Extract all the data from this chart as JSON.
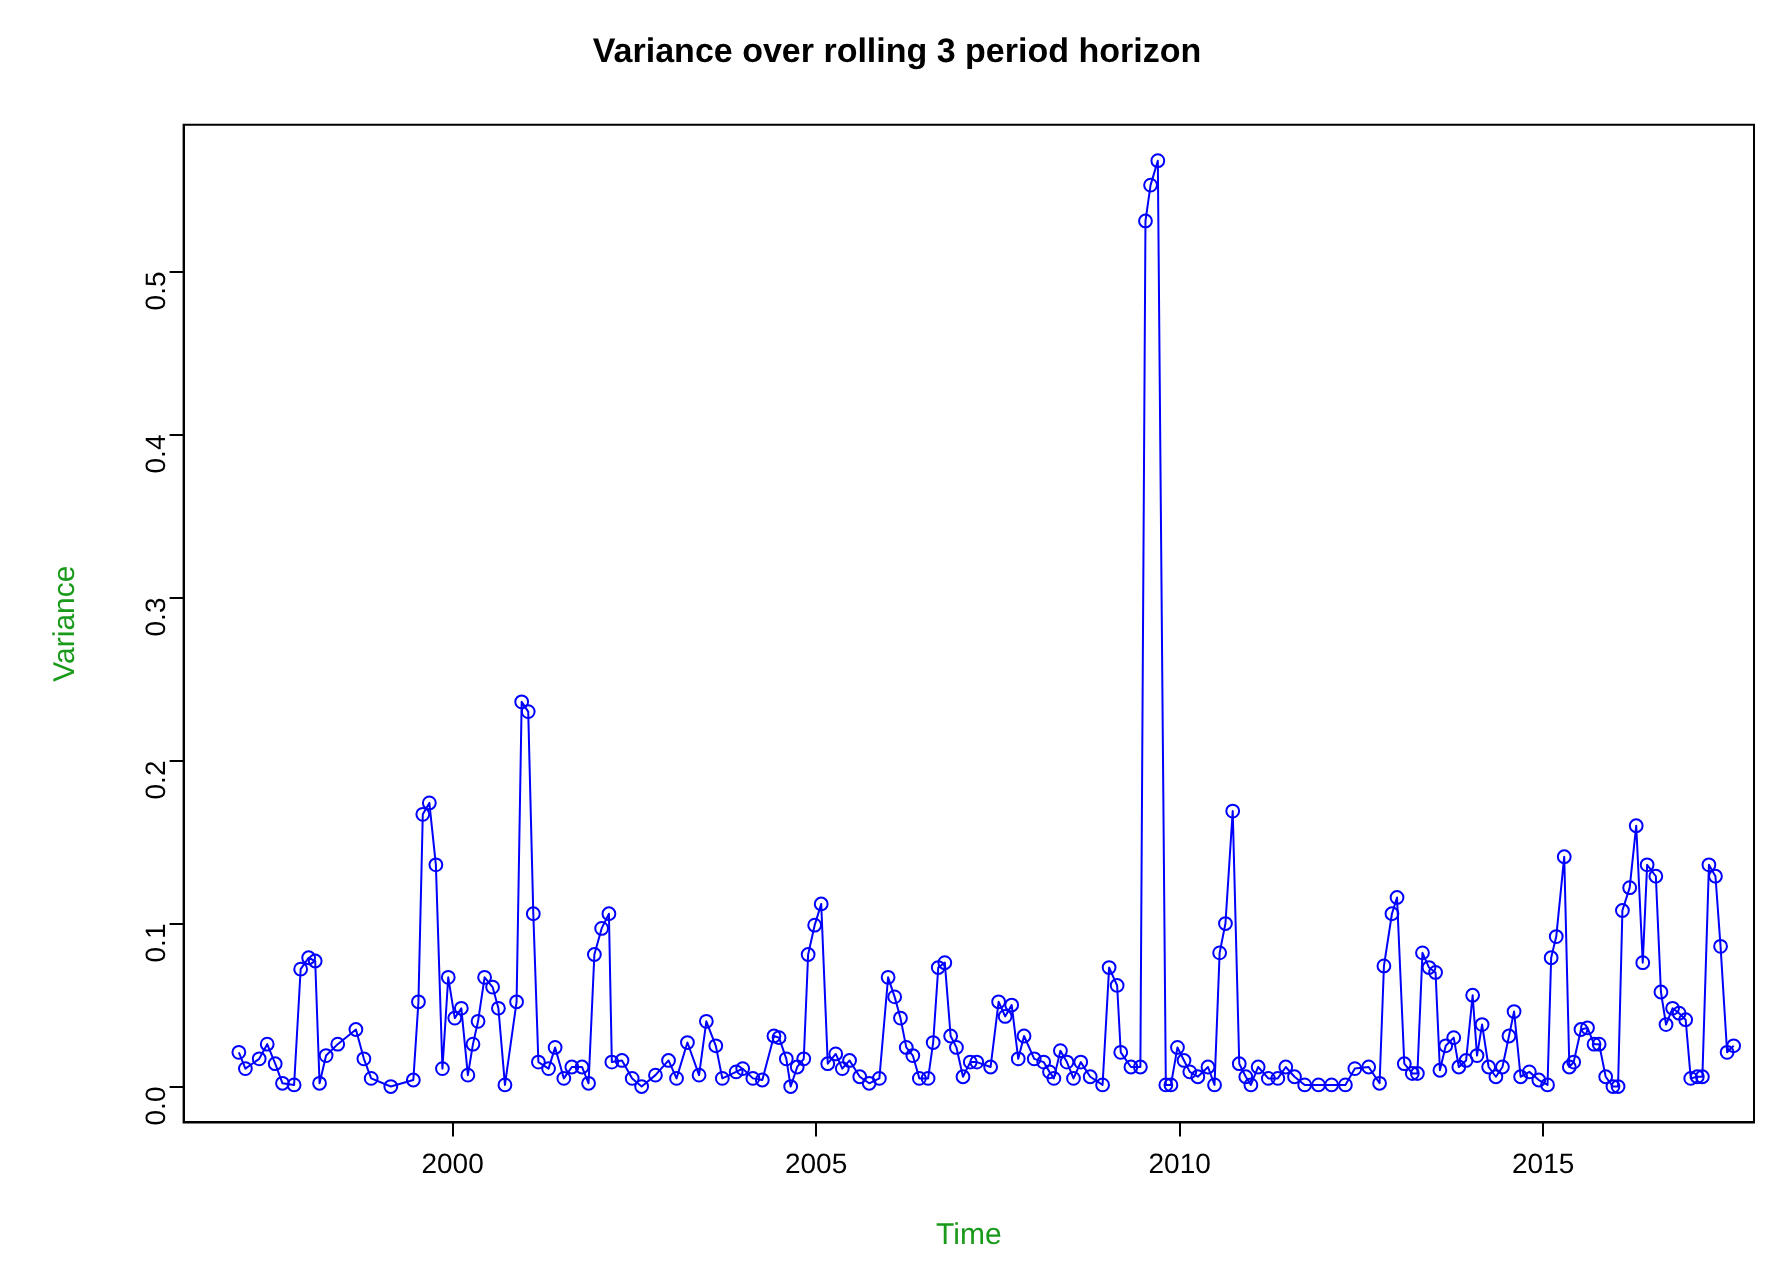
{
  "chart_data": {
    "type": "line",
    "title": "Variance over rolling 3 period horizon",
    "xlabel": "Time",
    "ylabel": "Variance",
    "xlim": [
      1996.3,
      2017.9
    ],
    "xticks": [
      2000,
      2005,
      2010,
      2015
    ],
    "ylim": [
      -0.022,
      0.59
    ],
    "yticks": [
      {
        "value": 0,
        "label": "0.0"
      },
      0.1,
      0.2,
      0.3,
      0.4,
      0.5
    ],
    "grid": false,
    "legend": false,
    "marker": "circle",
    "line_style": "solid",
    "series": [
      {
        "color": "#0000ff",
        "x": [
          1997.06,
          1997.15,
          1997.34,
          1997.45,
          1997.56,
          1997.66,
          1997.82,
          1997.91,
          1998.02,
          1998.11,
          1998.17,
          1998.26,
          1998.42,
          1998.67,
          1998.78,
          1998.88,
          1999.15,
          1999.46,
          1999.53,
          1999.59,
          1999.68,
          1999.77,
          1999.86,
          1999.94,
          2000.03,
          2000.12,
          2000.21,
          2000.28,
          2000.35,
          2000.44,
          2000.55,
          2000.63,
          2000.72,
          2000.88,
          2000.95,
          2001.04,
          2001.11,
          2001.18,
          2001.32,
          2001.41,
          2001.53,
          2001.64,
          2001.78,
          2001.87,
          2001.95,
          2002.05,
          2002.15,
          2002.19,
          2002.33,
          2002.47,
          2002.6,
          2002.79,
          2002.97,
          2003.08,
          2003.23,
          2003.39,
          2003.49,
          2003.62,
          2003.71,
          2003.9,
          2003.99,
          2004.13,
          2004.26,
          2004.42,
          2004.49,
          2004.59,
          2004.65,
          2004.74,
          2004.83,
          2004.89,
          2004.98,
          2005.07,
          2005.16,
          2005.27,
          2005.36,
          2005.46,
          2005.6,
          2005.73,
          2005.87,
          2005.99,
          2006.08,
          2006.16,
          2006.24,
          2006.33,
          2006.42,
          2006.54,
          2006.61,
          2006.68,
          2006.77,
          2006.85,
          2006.93,
          2007.02,
          2007.12,
          2007.21,
          2007.4,
          2007.51,
          2007.6,
          2007.69,
          2007.78,
          2007.86,
          2008.0,
          2008.13,
          2008.21,
          2008.27,
          2008.36,
          2008.45,
          2008.54,
          2008.64,
          2008.77,
          2008.94,
          2009.03,
          2009.14,
          2009.19,
          2009.33,
          2009.46,
          2009.53,
          2009.6,
          2009.7,
          2009.81,
          2009.88,
          2009.97,
          2010.06,
          2010.14,
          2010.25,
          2010.39,
          2010.48,
          2010.55,
          2010.63,
          2010.73,
          2010.82,
          2010.91,
          2010.98,
          2011.08,
          2011.22,
          2011.35,
          2011.46,
          2011.58,
          2011.72,
          2011.91,
          2012.09,
          2012.28,
          2012.41,
          2012.6,
          2012.75,
          2012.81,
          2012.92,
          2012.99,
          2013.09,
          2013.2,
          2013.27,
          2013.34,
          2013.43,
          2013.52,
          2013.58,
          2013.66,
          2013.77,
          2013.84,
          2013.94,
          2014.03,
          2014.09,
          2014.16,
          2014.25,
          2014.35,
          2014.44,
          2014.53,
          2014.6,
          2014.69,
          2014.81,
          2014.94,
          2015.06,
          2015.11,
          2015.18,
          2015.29,
          2015.36,
          2015.42,
          2015.52,
          2015.61,
          2015.7,
          2015.77,
          2015.86,
          2015.96,
          2016.03,
          2016.09,
          2016.19,
          2016.28,
          2016.37,
          2016.43,
          2016.55,
          2016.62,
          2016.69,
          2016.78,
          2016.87,
          2016.96,
          2017.03,
          2017.12,
          2017.19,
          2017.28,
          2017.37,
          2017.44,
          2017.53,
          2017.62
        ],
        "values": [
          0.021,
          0.011,
          0.017,
          0.026,
          0.014,
          0.002,
          0.001,
          0.072,
          0.079,
          0.077,
          0.002,
          0.019,
          0.026,
          0.035,
          0.017,
          0.005,
          0.0,
          0.004,
          0.052,
          0.167,
          0.174,
          0.136,
          0.011,
          0.067,
          0.042,
          0.048,
          0.007,
          0.026,
          0.04,
          0.067,
          0.061,
          0.048,
          0.001,
          0.052,
          0.236,
          0.23,
          0.106,
          0.015,
          0.011,
          0.024,
          0.005,
          0.012,
          0.012,
          0.002,
          0.081,
          0.097,
          0.106,
          0.015,
          0.016,
          0.005,
          0.0,
          0.007,
          0.016,
          0.005,
          0.027,
          0.007,
          0.04,
          0.025,
          0.005,
          0.009,
          0.011,
          0.005,
          0.004,
          0.031,
          0.03,
          0.017,
          0.0,
          0.012,
          0.017,
          0.081,
          0.099,
          0.112,
          0.014,
          0.02,
          0.011,
          0.016,
          0.006,
          0.002,
          0.005,
          0.067,
          0.055,
          0.042,
          0.024,
          0.019,
          0.005,
          0.005,
          0.027,
          0.073,
          0.076,
          0.031,
          0.024,
          0.006,
          0.015,
          0.015,
          0.012,
          0.052,
          0.043,
          0.05,
          0.017,
          0.031,
          0.017,
          0.015,
          0.009,
          0.005,
          0.022,
          0.015,
          0.005,
          0.015,
          0.006,
          0.001,
          0.073,
          0.062,
          0.021,
          0.012,
          0.012,
          0.531,
          0.553,
          0.568,
          0.001,
          0.001,
          0.024,
          0.016,
          0.009,
          0.006,
          0.012,
          0.001,
          0.082,
          0.1,
          0.169,
          0.014,
          0.006,
          0.001,
          0.012,
          0.005,
          0.005,
          0.012,
          0.006,
          0.001,
          0.001,
          0.001,
          0.001,
          0.011,
          0.012,
          0.002,
          0.074,
          0.106,
          0.116,
          0.014,
          0.008,
          0.008,
          0.082,
          0.073,
          0.07,
          0.01,
          0.025,
          0.03,
          0.012,
          0.016,
          0.056,
          0.019,
          0.038,
          0.012,
          0.006,
          0.012,
          0.031,
          0.046,
          0.006,
          0.009,
          0.004,
          0.001,
          0.079,
          0.092,
          0.141,
          0.012,
          0.015,
          0.035,
          0.036,
          0.026,
          0.026,
          0.006,
          0.0,
          0.0,
          0.108,
          0.122,
          0.16,
          0.076,
          0.136,
          0.129,
          0.058,
          0.038,
          0.048,
          0.045,
          0.041,
          0.005,
          0.006,
          0.006,
          0.136,
          0.129,
          0.086,
          0.021,
          0.025
        ]
      }
    ]
  }
}
